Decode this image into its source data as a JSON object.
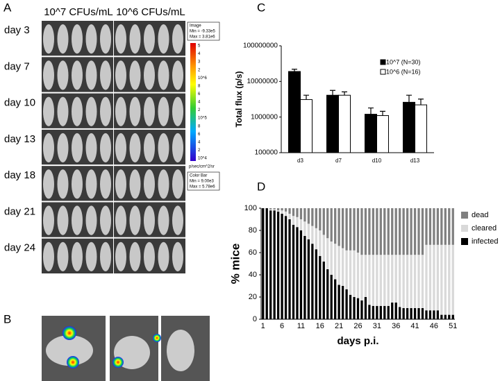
{
  "panel_labels": [
    "A",
    "B",
    "C",
    "D"
  ],
  "imaging": {
    "columns": [
      "10^7 CFUs/mL",
      "10^6 CFUs/mL"
    ],
    "rows": [
      "day 3",
      "day 7",
      "day 10",
      "day 13",
      "day 18",
      "day 21",
      "day 24"
    ],
    "image_box": [
      "Image",
      "Min = -9.33e5",
      "Max = 3.81e6"
    ],
    "colorbar_labels": [
      "5",
      "4",
      "3",
      "2",
      "10^6",
      "8",
      "6",
      "4",
      "2",
      "10^5",
      "8",
      "6",
      "4",
      "2",
      "10^4"
    ],
    "colorbar_unit": "p/sec/cm^2/sr",
    "colorbar_box": [
      "Color Bar",
      "Min = 9.00e3",
      "Max = 5.78e6"
    ]
  },
  "chart_data": [
    {
      "type": "bar",
      "y_label": "Total flux (p/s)",
      "log_scale": true,
      "categories": [
        "d3",
        "d7",
        "d10",
        "d13"
      ],
      "series": [
        {
          "name": "10^7 (N=30)",
          "color": "#000000",
          "values": [
            19000000,
            4100000,
            1200000,
            2600000
          ],
          "errors": [
            3000000,
            1500000,
            600000,
            1500000
          ]
        },
        {
          "name": "10^6 (N=16)",
          "color": "#ffffff",
          "values": [
            3100000,
            4100000,
            1100000,
            2200000
          ],
          "errors": [
            1000000,
            1000000,
            350000,
            1000000
          ]
        }
      ],
      "ylim": [
        100000,
        100000000
      ],
      "yticks": [
        100000,
        1000000,
        10000000,
        100000000
      ]
    },
    {
      "type": "stacked_bar",
      "y_label": "% mice",
      "x_label": "days p.i.",
      "categories": [
        "1",
        null,
        null,
        null,
        null,
        "6",
        null,
        null,
        null,
        null,
        "11",
        null,
        null,
        null,
        null,
        "16",
        null,
        null,
        null,
        null,
        "21",
        null,
        null,
        null,
        null,
        "26",
        null,
        null,
        null,
        null,
        "31",
        null,
        null,
        null,
        null,
        "36",
        null,
        null,
        null,
        null,
        "41",
        null,
        null,
        null,
        null,
        "46",
        null,
        null,
        null,
        null,
        "51"
      ],
      "series": [
        {
          "name": "infected",
          "color": "#000000",
          "values": [
            100,
            100,
            98,
            98,
            97,
            95,
            93,
            90,
            85,
            83,
            80,
            75,
            72,
            68,
            63,
            57,
            52,
            45,
            40,
            36,
            31,
            30,
            27,
            22,
            20,
            19,
            17,
            20,
            13,
            12,
            12,
            12,
            12,
            12,
            15,
            15,
            11,
            10,
            10,
            10,
            10,
            10,
            10,
            8,
            8,
            8,
            8,
            4,
            4,
            4,
            4
          ]
        },
        {
          "name": "cleared",
          "color": "#d9d9d9",
          "values": [
            0,
            0,
            1,
            1,
            1,
            3,
            4,
            5,
            8,
            9,
            10,
            13,
            14,
            16,
            19,
            23,
            24,
            28,
            30,
            32,
            35,
            34,
            35,
            40,
            42,
            41,
            41,
            38,
            45,
            46,
            46,
            46,
            46,
            46,
            43,
            43,
            47,
            48,
            48,
            48,
            48,
            48,
            48,
            59,
            59,
            59,
            59,
            63,
            63,
            63,
            63
          ]
        },
        {
          "name": "dead",
          "color": "#808080",
          "values": [
            0,
            0,
            1,
            1,
            2,
            2,
            3,
            5,
            7,
            8,
            10,
            12,
            14,
            16,
            18,
            20,
            24,
            27,
            30,
            32,
            34,
            36,
            38,
            38,
            38,
            40,
            42,
            42,
            42,
            42,
            42,
            42,
            42,
            42,
            42,
            42,
            42,
            42,
            42,
            42,
            42,
            42,
            42,
            33,
            33,
            33,
            33,
            33,
            33,
            33,
            33
          ]
        }
      ],
      "ylim": [
        0,
        100
      ],
      "yticks": [
        0,
        20,
        40,
        60,
        80,
        100
      ]
    }
  ]
}
